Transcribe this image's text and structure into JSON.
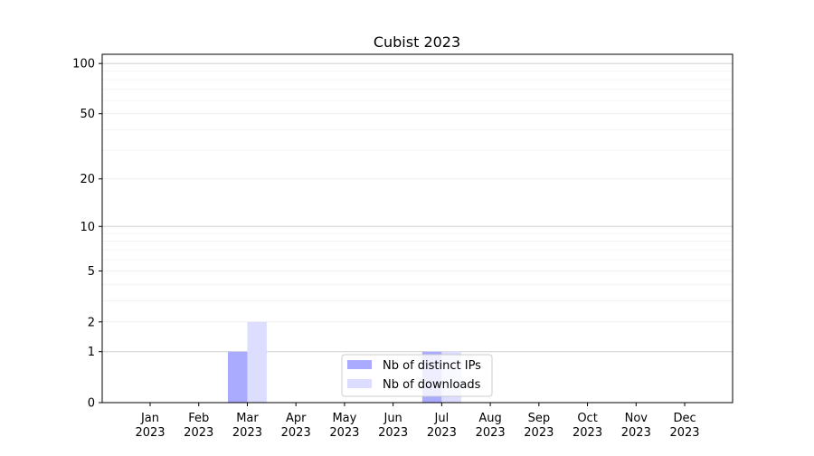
{
  "chart_data": {
    "type": "bar",
    "title": "Cubist 2023",
    "xlabel": "",
    "ylabel": "",
    "yscale": "log(1+y)",
    "ylim": [
      0,
      113
    ],
    "yticks": [
      0,
      1,
      2,
      5,
      10,
      20,
      50,
      100
    ],
    "grid": true,
    "legend_position": "lower center",
    "categories": [
      "Jan\n2023",
      "Feb\n2023",
      "Mar\n2023",
      "Apr\n2023",
      "May\n2023",
      "Jun\n2023",
      "Jul\n2023",
      "Aug\n2023",
      "Sep\n2023",
      "Oct\n2023",
      "Nov\n2023",
      "Dec\n2023"
    ],
    "series": [
      {
        "name": "Nb of distinct IPs",
        "color": "#aaaaff",
        "values": [
          0,
          0,
          1,
          0,
          0,
          0,
          1,
          0,
          0,
          0,
          0,
          0
        ]
      },
      {
        "name": "Nb of downloads",
        "color": "#ddddff",
        "values": [
          0,
          0,
          2,
          0,
          0,
          0,
          1,
          0,
          0,
          0,
          0,
          0
        ]
      }
    ]
  }
}
